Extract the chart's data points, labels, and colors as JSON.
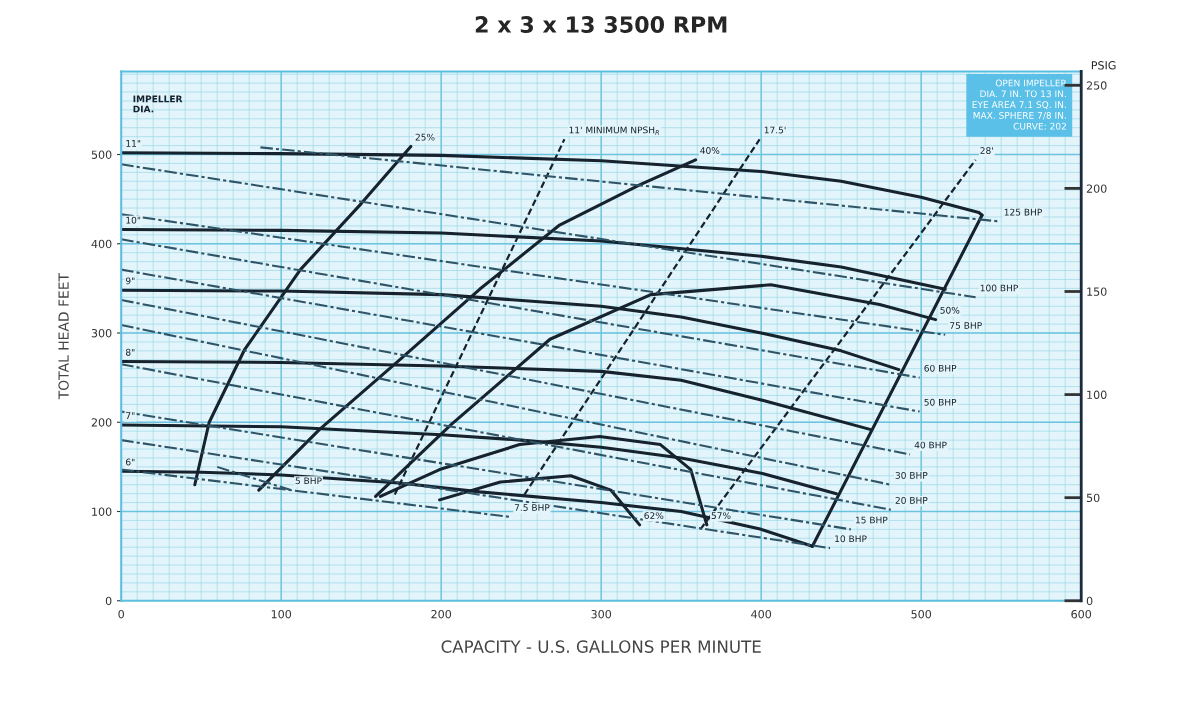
{
  "chart_data": {
    "type": "line",
    "title": "2 x 3 x 13 3500 RPM",
    "xlabel": "CAPACITY - U.S. GALLONS PER MINUTE",
    "ylabel": "TOTAL HEAD FEET",
    "y2label": "PSIG",
    "xlim": [
      0,
      600
    ],
    "xticks": [
      0,
      100,
      200,
      300,
      400,
      500,
      600
    ],
    "ylim": [
      0,
      593
    ],
    "yticks": [
      0,
      100,
      200,
      300,
      400,
      500
    ],
    "y2lim": [
      0,
      256.7
    ],
    "y2ticks": [
      0,
      50,
      100,
      150,
      200,
      250
    ],
    "grid": true,
    "series": [
      {
        "name": "11\"",
        "color": "#16222e",
        "line_style": "solid",
        "x": [
          538,
          536,
          500,
          450,
          400,
          300,
          200,
          100,
          0
        ],
        "values": [
          432,
          435,
          452,
          470,
          481,
          493,
          499,
          501,
          502
        ]
      },
      {
        "name": "10\"",
        "color": "#16222e",
        "line_style": "solid",
        "x": [
          515,
          450,
          400,
          300,
          200,
          100,
          0
        ],
        "values": [
          349,
          374,
          386,
          403,
          412,
          415,
          416
        ]
      },
      {
        "name": "9\"",
        "color": "#16222e",
        "line_style": "solid",
        "x": [
          486,
          450,
          400,
          350,
          300,
          200,
          100,
          0
        ],
        "values": [
          259,
          280,
          300,
          318,
          330,
          343,
          347,
          348
        ]
      },
      {
        "name": "8\"",
        "color": "#16222e",
        "line_style": "solid",
        "x": [
          468,
          400,
          350,
          300,
          200,
          100,
          0
        ],
        "values": [
          192,
          225,
          247,
          257,
          263,
          267,
          268
        ]
      },
      {
        "name": "7\"",
        "color": "#16222e",
        "line_style": "solid",
        "x": [
          447,
          400,
          350,
          300,
          250,
          200,
          100,
          0
        ],
        "values": [
          120,
          143,
          160,
          172,
          180,
          186,
          195,
          197
        ]
      },
      {
        "name": "6\"",
        "color": "#16222e",
        "line_style": "solid",
        "x": [
          432,
          400,
          350,
          300,
          224,
          174,
          100,
          50,
          0
        ],
        "values": [
          61,
          80,
          100,
          110,
          122,
          132,
          141,
          144,
          145
        ]
      },
      {
        "color": "#16222e",
        "line_style": "solid",
        "x": [
          432,
          538
        ],
        "values": [
          61,
          432
        ]
      },
      {
        "name": "25%",
        "color": "#16222e",
        "line_style": "solid",
        "x": [
          46,
          55,
          77,
          112,
          150,
          181
        ],
        "values": [
          130,
          200,
          281,
          371,
          445,
          509
        ]
      },
      {
        "name": "40%",
        "color": "#16222e",
        "line_style": "solid",
        "x": [
          86,
          124,
          174,
          224,
          274,
          324,
          359
        ],
        "values": [
          124,
          192,
          270,
          349,
          421,
          466,
          494
        ]
      },
      {
        "name": "50%",
        "color": "#16222e",
        "line_style": "solid",
        "x": [
          159,
          206,
          268,
          331,
          406,
          474,
          509
        ],
        "values": [
          117,
          197,
          293,
          343,
          354,
          332,
          315
        ]
      },
      {
        "name": "57%",
        "color": "#16222e",
        "line_style": "solid",
        "x": [
          162,
          199,
          249,
          299,
          337,
          356,
          366
        ],
        "values": [
          117,
          147,
          175,
          184,
          175,
          147,
          85
        ]
      },
      {
        "name": "62%",
        "color": "#16222e",
        "line_style": "solid",
        "x": [
          199,
          237,
          281,
          306,
          324
        ],
        "values": [
          113,
          133,
          140,
          124,
          85
        ]
      },
      {
        "name": "11' MINIMUM NPSH$_{R}$",
        "color": "#16222e",
        "line_style": "dashed",
        "x": [
          171,
          277
        ],
        "values": [
          119,
          517
        ]
      },
      {
        "name": "17.5'",
        "color": "#16222e",
        "line_style": "dashed",
        "x": [
          252,
          399
        ],
        "values": [
          119,
          517
        ]
      },
      {
        "name": "28'",
        "color": "#16222e",
        "line_style": "dashed",
        "x": [
          362,
          534
        ],
        "values": [
          80,
          494
        ]
      },
      {
        "name": "125 BHP",
        "color": "#2f5466",
        "line_style": "dashdot",
        "x": [
          87,
          549
        ],
        "values": [
          508,
          425
        ]
      },
      {
        "name": "100 BHP",
        "color": "#2f5466",
        "line_style": "dashdot",
        "x": [
          0,
          534
        ],
        "values": [
          489,
          340
        ]
      },
      {
        "name": "75 BHP",
        "color": "#2f5466",
        "line_style": "dashdot",
        "x": [
          0,
          515
        ],
        "values": [
          433,
          298
        ]
      },
      {
        "name": "60 BHP",
        "color": "#2f5466",
        "line_style": "dashdot",
        "x": [
          0,
          499
        ],
        "values": [
          405,
          250
        ]
      },
      {
        "name": "50 BHP",
        "color": "#2f5466",
        "line_style": "dashdot",
        "x": [
          0,
          499
        ],
        "values": [
          371,
          212
        ]
      },
      {
        "name": "40 BHP",
        "color": "#2f5466",
        "line_style": "dashdot",
        "x": [
          0,
          493
        ],
        "values": [
          337,
          164
        ]
      },
      {
        "name": "30 BHP",
        "color": "#2f5466",
        "line_style": "dashdot",
        "x": [
          0,
          481
        ],
        "values": [
          309,
          130
        ]
      },
      {
        "name": "20 BHP",
        "color": "#2f5466",
        "line_style": "dashdot",
        "x": [
          0,
          481
        ],
        "values": [
          265,
          102
        ]
      },
      {
        "name": "15 BHP",
        "color": "#2f5466",
        "line_style": "dashdot",
        "x": [
          0,
          456
        ],
        "values": [
          212,
          80
        ]
      },
      {
        "name": "10 BHP",
        "color": "#2f5466",
        "line_style": "dashdot",
        "x": [
          0,
          443
        ],
        "values": [
          180,
          59
        ]
      },
      {
        "name": "7.5 BHP",
        "color": "#2f5466",
        "line_style": "dashdot",
        "x": [
          0,
          243
        ],
        "values": [
          147,
          94
        ]
      },
      {
        "name": "5 BHP",
        "color": "#2f5466",
        "line_style": "dashdot",
        "x": [
          60,
          106
        ],
        "values": [
          150,
          124
        ]
      }
    ],
    "annotations": [
      "IMPELLER\nDIA.",
      "OPEN IMPELLER\nDIA. 7 IN. TO 13 IN.\nEYE AREA 7.1 SQ. IN.\nMAX. SPHERE 7/8 IN.\nCURVE: 202"
    ]
  }
}
